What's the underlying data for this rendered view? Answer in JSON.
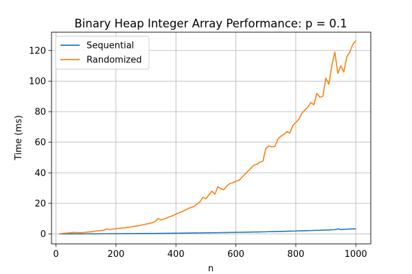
{
  "chart_data": {
    "type": "line",
    "title": "Binary Heap Integer Array Performance: p = 0.1",
    "xlabel": "n",
    "ylabel": "Time (ms)",
    "xlim": [
      -15,
      1050
    ],
    "ylim": [
      -6.5,
      132
    ],
    "xticks": [
      0,
      200,
      400,
      600,
      800,
      1000
    ],
    "yticks": [
      0,
      20,
      40,
      60,
      80,
      100,
      120
    ],
    "grid": true,
    "legend_position": "top-left",
    "x": [
      10,
      20,
      30,
      40,
      50,
      60,
      70,
      80,
      90,
      100,
      110,
      120,
      130,
      140,
      150,
      160,
      170,
      180,
      190,
      200,
      210,
      220,
      230,
      240,
      250,
      260,
      270,
      280,
      290,
      300,
      310,
      320,
      330,
      340,
      350,
      360,
      370,
      380,
      390,
      400,
      410,
      420,
      430,
      440,
      450,
      460,
      470,
      480,
      490,
      500,
      510,
      520,
      530,
      540,
      550,
      560,
      570,
      580,
      590,
      600,
      610,
      620,
      630,
      640,
      650,
      660,
      670,
      680,
      690,
      700,
      710,
      720,
      730,
      740,
      750,
      760,
      770,
      780,
      790,
      800,
      810,
      820,
      830,
      840,
      850,
      860,
      870,
      880,
      890,
      900,
      910,
      920,
      930,
      940,
      950,
      960,
      970,
      980,
      990,
      1000
    ],
    "series": [
      {
        "name": "Sequential",
        "color": "#1f77b4",
        "values": [
          0.0,
          0.01,
          0.01,
          0.02,
          0.02,
          0.03,
          0.03,
          0.04,
          0.05,
          0.05,
          0.06,
          0.07,
          0.08,
          0.09,
          0.1,
          0.11,
          0.12,
          0.13,
          0.14,
          0.15,
          0.16,
          0.17,
          0.19,
          0.2,
          0.21,
          0.23,
          0.24,
          0.26,
          0.27,
          0.29,
          0.31,
          0.32,
          0.34,
          0.36,
          0.38,
          0.4,
          0.42,
          0.44,
          0.46,
          0.48,
          0.5,
          0.53,
          0.55,
          0.57,
          0.6,
          0.62,
          0.65,
          0.67,
          0.7,
          0.73,
          0.76,
          0.78,
          0.81,
          0.84,
          0.87,
          0.9,
          0.93,
          0.97,
          1.0,
          1.03,
          1.06,
          1.1,
          1.13,
          1.17,
          1.2,
          1.24,
          1.28,
          1.32,
          1.35,
          1.4,
          1.45,
          1.5,
          1.55,
          1.6,
          1.65,
          1.7,
          1.75,
          1.8,
          1.85,
          1.9,
          2.0,
          2.05,
          2.1,
          2.15,
          2.2,
          2.3,
          2.35,
          2.4,
          2.5,
          2.55,
          2.6,
          2.7,
          2.8,
          3.3,
          2.9,
          3.0,
          3.1,
          3.2,
          3.3,
          3.4
        ]
      },
      {
        "name": "Randomized",
        "color": "#ff7f0e",
        "values": [
          0.0,
          0.3,
          0.5,
          0.6,
          0.8,
          1.0,
          0.9,
          0.8,
          0.9,
          1.1,
          1.3,
          1.5,
          1.8,
          2.0,
          2.2,
          2.5,
          3.3,
          2.8,
          3.2,
          3.5,
          3.6,
          3.9,
          4.0,
          4.3,
          4.6,
          4.9,
          5.2,
          5.5,
          6.0,
          6.4,
          6.8,
          7.3,
          8.0,
          10.0,
          9.2,
          9.8,
          10.5,
          11.3,
          12.0,
          13.0,
          13.8,
          14.5,
          15.5,
          16.5,
          17.3,
          18.0,
          19.5,
          21.0,
          24.0,
          23.0,
          25.5,
          28.0,
          26.0,
          31.0,
          29.5,
          29.0,
          31.5,
          33.0,
          33.5,
          34.5,
          35.0,
          37.0,
          39.0,
          41.0,
          43.0,
          45.0,
          45.5,
          47.0,
          47.5,
          56.0,
          57.5,
          57.0,
          57.2,
          62.0,
          64.0,
          65.0,
          67.0,
          66.0,
          71.0,
          73.0,
          75.0,
          79.0,
          81.0,
          83.0,
          86.0,
          84.5,
          92.0,
          89.5,
          90.0,
          102.0,
          98.0,
          110.0,
          119.0,
          105.0,
          110.0,
          106.0,
          116.0,
          119.0,
          124.0,
          126.5
        ]
      }
    ]
  }
}
